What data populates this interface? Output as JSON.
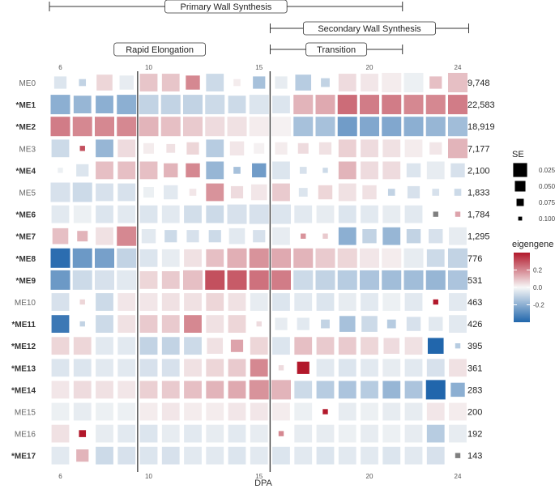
{
  "chart_data": {
    "type": "heatmap",
    "xlabel": "DPA",
    "x": [
      6,
      7,
      8,
      9,
      10,
      11,
      12,
      13,
      14,
      15,
      16,
      17,
      18,
      19,
      20,
      21,
      22,
      23,
      24
    ],
    "x_ticks": [
      "6",
      "10",
      "15",
      "20",
      "24"
    ],
    "phases": [
      {
        "label": "Primary Wall Synthesis",
        "from": 6,
        "to": 21
      },
      {
        "label": "Secondary Wall Synthesis",
        "from": 16,
        "to": 24
      },
      {
        "label": "Rapid Elongation",
        "from": 9,
        "to": 12
      },
      {
        "label": "Transition",
        "from": 16,
        "to": 21
      }
    ],
    "dividers_between": [
      [
        9,
        10
      ],
      [
        15,
        16
      ]
    ],
    "modules": [
      {
        "name": "ME0",
        "starred": false,
        "genes": "9,748"
      },
      {
        "name": "*ME1",
        "starred": true,
        "genes": "22,583"
      },
      {
        "name": "*ME2",
        "starred": true,
        "genes": "18,919"
      },
      {
        "name": "ME3",
        "starred": false,
        "genes": "7,177"
      },
      {
        "name": "*ME4",
        "starred": true,
        "genes": "2,100"
      },
      {
        "name": "ME5",
        "starred": false,
        "genes": "1,833"
      },
      {
        "name": "*ME6",
        "starred": true,
        "genes": "1,784"
      },
      {
        "name": "*ME7",
        "starred": true,
        "genes": "1,295"
      },
      {
        "name": "*ME8",
        "starred": true,
        "genes": "776"
      },
      {
        "name": "*ME9",
        "starred": true,
        "genes": "531"
      },
      {
        "name": "ME10",
        "starred": false,
        "genes": "463"
      },
      {
        "name": "*ME11",
        "starred": true,
        "genes": "426"
      },
      {
        "name": "*ME12",
        "starred": true,
        "genes": "395"
      },
      {
        "name": "*ME13",
        "starred": true,
        "genes": "361"
      },
      {
        "name": "*ME14",
        "starred": true,
        "genes": "283"
      },
      {
        "name": "ME15",
        "starred": false,
        "genes": "200"
      },
      {
        "name": "ME16",
        "starred": false,
        "genes": "192"
      },
      {
        "name": "*ME17",
        "starred": true,
        "genes": "143"
      }
    ],
    "eigengene": [
      [
        -0.05,
        -0.1,
        0.06,
        -0.03,
        0.09,
        0.09,
        0.2,
        -0.08,
        0.02,
        -0.15,
        -0.03,
        -0.12,
        -0.1,
        0.05,
        0.03,
        0.02,
        -0.02,
        0.1,
        0.1
      ],
      [
        -0.2,
        -0.18,
        -0.2,
        -0.2,
        -0.1,
        -0.1,
        -0.1,
        -0.08,
        -0.08,
        -0.05,
        -0.05,
        0.12,
        0.14,
        0.25,
        0.22,
        0.22,
        0.2,
        0.2,
        0.22
      ],
      [
        0.22,
        0.2,
        0.2,
        0.2,
        0.12,
        0.1,
        0.08,
        0.05,
        0.04,
        0.02,
        0.01,
        -0.15,
        -0.15,
        -0.25,
        -0.22,
        -0.22,
        -0.2,
        -0.18,
        -0.16
      ],
      [
        -0.08,
        0.3,
        -0.18,
        0.05,
        0.02,
        0.04,
        0.06,
        -0.12,
        0.03,
        0.01,
        0.02,
        0.05,
        0.04,
        0.07,
        0.05,
        0.04,
        0.02,
        0.03,
        0.12
      ],
      [
        -0.02,
        -0.05,
        0.1,
        0.1,
        0.1,
        0.12,
        0.2,
        -0.18,
        -0.15,
        -0.25,
        -0.05,
        -0.06,
        -0.08,
        0.12,
        0.05,
        0.05,
        -0.05,
        -0.03,
        -0.06
      ],
      [
        -0.06,
        -0.08,
        -0.06,
        -0.06,
        -0.02,
        -0.04,
        0.03,
        0.18,
        0.05,
        0.03,
        0.08,
        -0.05,
        0.06,
        0.04,
        0.04,
        -0.1,
        -0.06,
        -0.06,
        -0.08
      ],
      [
        -0.04,
        -0.02,
        -0.05,
        -0.04,
        -0.05,
        -0.04,
        -0.07,
        -0.08,
        -0.06,
        -0.06,
        -0.05,
        -0.04,
        -0.03,
        -0.05,
        -0.04,
        -0.03,
        -0.04,
        "NA",
        0.15
      ],
      [
        0.1,
        0.12,
        0.04,
        0.2,
        -0.04,
        -0.08,
        -0.06,
        -0.08,
        -0.04,
        -0.06,
        -0.03,
        0.18,
        0.08,
        -0.2,
        -0.1,
        -0.18,
        -0.1,
        -0.06,
        -0.03
      ],
      [
        -0.38,
        -0.26,
        -0.24,
        -0.1,
        -0.05,
        -0.03,
        0.04,
        0.1,
        0.13,
        0.18,
        0.14,
        0.12,
        0.08,
        0.06,
        0.03,
        0.02,
        -0.03,
        -0.08,
        -0.1
      ],
      [
        -0.26,
        -0.08,
        -0.06,
        -0.04,
        0.06,
        0.08,
        0.1,
        0.3,
        0.28,
        0.24,
        0.22,
        -0.08,
        -0.1,
        -0.12,
        -0.14,
        -0.16,
        -0.16,
        -0.18,
        -0.14
      ],
      [
        -0.06,
        0.06,
        -0.08,
        0.03,
        0.03,
        0.04,
        0.04,
        0.06,
        0.04,
        -0.03,
        -0.05,
        -0.04,
        -0.05,
        -0.03,
        -0.04,
        -0.02,
        -0.04,
        0.5,
        -0.04
      ],
      [
        -0.35,
        -0.1,
        -0.08,
        0.04,
        0.08,
        0.08,
        0.2,
        0.04,
        0.06,
        0.05,
        -0.03,
        -0.04,
        -0.1,
        -0.15,
        -0.08,
        -0.12,
        -0.06,
        -0.04,
        -0.04
      ],
      [
        0.06,
        0.06,
        -0.04,
        -0.04,
        -0.1,
        -0.1,
        -0.08,
        0.04,
        0.15,
        0.06,
        -0.05,
        0.1,
        0.08,
        0.08,
        0.06,
        0.05,
        0.04,
        -0.4,
        -0.12
      ],
      [
        -0.05,
        -0.05,
        -0.04,
        -0.04,
        -0.06,
        -0.06,
        0.04,
        0.06,
        0.08,
        0.2,
        0.05,
        0.5,
        -0.04,
        -0.05,
        -0.04,
        -0.03,
        -0.04,
        -0.06,
        0.04
      ],
      [
        0.03,
        0.05,
        0.04,
        0.03,
        0.07,
        0.08,
        0.1,
        0.12,
        0.14,
        0.18,
        0.12,
        -0.08,
        -0.12,
        -0.14,
        -0.12,
        -0.18,
        -0.14,
        -0.42,
        -0.2
      ],
      [
        -0.02,
        -0.03,
        -0.02,
        -0.02,
        0.02,
        0.03,
        0.02,
        0.02,
        0.03,
        0.03,
        0.02,
        -0.02,
        0.5,
        -0.03,
        -0.02,
        -0.03,
        -0.03,
        0.03,
        0.02
      ],
      [
        0.04,
        0.45,
        -0.03,
        -0.04,
        -0.05,
        -0.03,
        -0.04,
        -0.03,
        -0.04,
        -0.03,
        0.2,
        -0.03,
        -0.03,
        -0.02,
        -0.03,
        -0.02,
        -0.03,
        -0.12,
        -0.03
      ],
      [
        -0.04,
        0.12,
        -0.08,
        -0.06,
        -0.05,
        -0.06,
        -0.04,
        -0.04,
        -0.05,
        -0.04,
        -0.05,
        -0.04,
        -0.05,
        -0.04,
        -0.04,
        -0.05,
        -0.04,
        -0.06,
        "NA"
      ]
    ],
    "se": [
      [
        0.06,
        0.09,
        0.04,
        0.05,
        0.03,
        0.03,
        0.05,
        0.03,
        0.09,
        0.06,
        0.06,
        0.04,
        0.08,
        0.03,
        0.03,
        0.02,
        0.02,
        0.06,
        0.02
      ],
      [
        0.02,
        0.03,
        0.03,
        0.02,
        0.02,
        0.02,
        0.02,
        0.02,
        0.03,
        0.02,
        0.03,
        0.02,
        0.02,
        0.02,
        0.02,
        0.02,
        0.02,
        0.02,
        0.02
      ],
      [
        0.02,
        0.02,
        0.02,
        0.02,
        0.02,
        0.02,
        0.02,
        0.02,
        0.02,
        0.02,
        0.02,
        0.02,
        0.02,
        0.02,
        0.02,
        0.02,
        0.02,
        0.02,
        0.02
      ],
      [
        0.03,
        0.1,
        0.03,
        0.03,
        0.07,
        0.08,
        0.06,
        0.03,
        0.05,
        0.07,
        0.06,
        0.07,
        0.06,
        0.03,
        0.03,
        0.03,
        0.03,
        0.06,
        0.02
      ],
      [
        0.1,
        0.06,
        0.03,
        0.03,
        0.03,
        0.05,
        0.05,
        0.03,
        0.09,
        0.05,
        0.03,
        0.09,
        0.1,
        0.03,
        0.03,
        0.03,
        0.05,
        0.03,
        0.05
      ],
      [
        0.02,
        0.02,
        0.03,
        0.03,
        0.07,
        0.05,
        0.09,
        0.03,
        0.06,
        0.04,
        0.03,
        0.08,
        0.05,
        0.03,
        0.05,
        0.09,
        0.06,
        0.09,
        0.09
      ],
      [
        0.03,
        0.03,
        0.03,
        0.03,
        0.03,
        0.03,
        0.03,
        0.03,
        0.02,
        0.02,
        0.02,
        0.03,
        0.03,
        0.03,
        0.03,
        0.03,
        0.03,
        0.1,
        0.1
      ],
      [
        0.04,
        0.07,
        0.03,
        0.02,
        0.05,
        0.06,
        0.06,
        0.06,
        0.04,
        0.06,
        0.03,
        0.1,
        0.1,
        0.03,
        0.05,
        0.03,
        0.05,
        0.05,
        0.03
      ],
      [
        0.02,
        0.02,
        0.02,
        0.02,
        0.03,
        0.03,
        0.03,
        0.03,
        0.02,
        0.02,
        0.02,
        0.02,
        0.02,
        0.02,
        0.02,
        0.02,
        0.02,
        0.03,
        0.02
      ],
      [
        0.02,
        0.02,
        0.02,
        0.02,
        0.03,
        0.03,
        0.02,
        0.02,
        0.02,
        0.02,
        0.02,
        0.02,
        0.02,
        0.02,
        0.02,
        0.02,
        0.02,
        0.02,
        0.02
      ],
      [
        0.03,
        0.1,
        0.03,
        0.03,
        0.03,
        0.03,
        0.03,
        0.03,
        0.03,
        0.03,
        0.03,
        0.03,
        0.03,
        0.03,
        0.03,
        0.03,
        0.03,
        0.1,
        0.03
      ],
      [
        0.03,
        0.1,
        0.03,
        0.03,
        0.03,
        0.03,
        0.03,
        0.03,
        0.03,
        0.1,
        0.06,
        0.06,
        0.08,
        0.04,
        0.04,
        0.08,
        0.05,
        0.05,
        0.03
      ],
      [
        0.03,
        0.03,
        0.03,
        0.03,
        0.03,
        0.03,
        0.03,
        0.04,
        0.06,
        0.03,
        0.03,
        0.03,
        0.03,
        0.03,
        0.03,
        0.04,
        0.03,
        0.04,
        0.1
      ],
      [
        0.03,
        0.03,
        0.03,
        0.03,
        0.03,
        0.03,
        0.03,
        0.03,
        0.03,
        0.03,
        0.1,
        0.06,
        0.03,
        0.03,
        0.03,
        0.03,
        0.03,
        0.03,
        0.03
      ],
      [
        0.03,
        0.03,
        0.03,
        0.03,
        0.03,
        0.03,
        0.03,
        0.03,
        0.03,
        0.02,
        0.02,
        0.03,
        0.03,
        0.03,
        0.03,
        0.03,
        0.03,
        0.02,
        0.05
      ],
      [
        0.03,
        0.03,
        0.03,
        0.03,
        0.03,
        0.03,
        0.03,
        0.03,
        0.03,
        0.03,
        0.03,
        0.03,
        0.1,
        0.03,
        0.03,
        0.03,
        0.03,
        0.03,
        0.03
      ],
      [
        0.03,
        0.09,
        0.03,
        0.03,
        0.03,
        0.03,
        0.03,
        0.03,
        0.03,
        0.03,
        0.1,
        0.03,
        0.03,
        0.03,
        0.03,
        0.03,
        0.03,
        0.03,
        0.03
      ],
      [
        0.03,
        0.06,
        0.03,
        0.03,
        0.03,
        0.03,
        0.03,
        0.03,
        0.03,
        0.03,
        0.03,
        0.03,
        0.03,
        0.03,
        0.03,
        0.03,
        0.03,
        0.03,
        0.1
      ]
    ],
    "size_legend": {
      "title": "SE",
      "values": [
        "0.025",
        "0.050",
        "0.075",
        "0.100"
      ]
    },
    "color_legend": {
      "title": "eigengene",
      "ticks": [
        "0.2",
        "0.0",
        "-0.2"
      ],
      "range": [
        -0.4,
        0.4
      ]
    },
    "colors": {
      "low": "#2166ac",
      "mid": "#f7f7f7",
      "high": "#b2182b",
      "na": "#7f7f7f"
    }
  }
}
